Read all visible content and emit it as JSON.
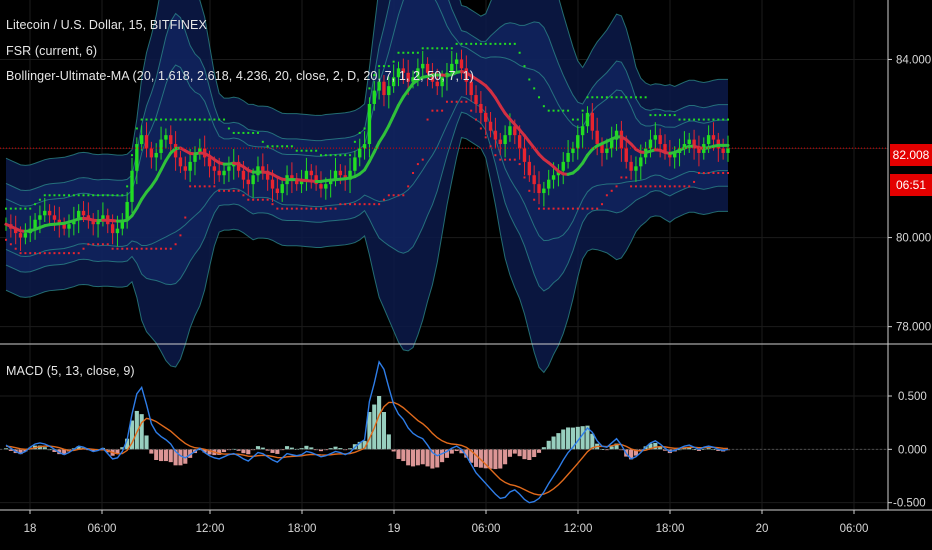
{
  "chart_title": "Litecoin / U.S. Dollar, 15, BITFINEX",
  "indicators": {
    "fsr": "FSR (current, 6)",
    "bollinger": "Bollinger-Ultimate-MA (20, 1.618, 2.618, 4.236, 20, close, 2, D, 20, 7, 1, 2, 50, 7, 1)",
    "macd": "MACD (5, 13, close, 9)"
  },
  "price_tags": {
    "price": "82.008",
    "countdown": "06:51"
  },
  "colors": {
    "up": "#22dd22",
    "down": "#e8242f",
    "ma_up": "#2fc23a",
    "ma_down": "#d22f43",
    "macd_line": "#2e7de8",
    "signal_line": "#e06a1c",
    "hist_up": "#a8e6d4",
    "hist_down": "#f4a6a6",
    "band_fill": "#0c1a4a",
    "band_line": "#2e8c8c",
    "price_line": "#e30000",
    "fsr_up": "#22dd22",
    "fsr_down": "#e8242f"
  },
  "chart_data": [
    {
      "type": "candlestick",
      "title": "Litecoin / U.S. Dollar, 15, BITFINEX",
      "ylim": [
        77.7,
        85.2
      ],
      "y_ticks": [
        "84.000",
        "80.000",
        "78.000"
      ],
      "current_price": 82.008,
      "series": [
        {
          "name": "price",
          "values": [
            80.3,
            80.2,
            80.1,
            80.0,
            80.1,
            80.2,
            80.4,
            80.5,
            80.6,
            80.5,
            80.4,
            80.3,
            80.2,
            80.3,
            80.4,
            80.6,
            80.5,
            80.4,
            80.3,
            80.4,
            80.5,
            80.3,
            80.1,
            80.2,
            80.4,
            80.8,
            81.5,
            82.1,
            82.3,
            82.0,
            81.8,
            81.9,
            82.2,
            82.3,
            82.1,
            81.8,
            81.6,
            81.5,
            81.7,
            81.9,
            82.0,
            81.8,
            81.6,
            81.5,
            81.4,
            81.5,
            81.6,
            81.7,
            81.5,
            81.3,
            81.2,
            81.4,
            81.6,
            81.5,
            81.3,
            81.1,
            81.0,
            81.2,
            81.4,
            81.3,
            81.2,
            81.3,
            81.5,
            81.4,
            81.2,
            81.1,
            81.2,
            81.3,
            81.5,
            81.4,
            81.3,
            81.5,
            81.8,
            82.0,
            82.1,
            83.0,
            83.3,
            83.5,
            83.2,
            83.4,
            83.6,
            83.8,
            83.7,
            83.5,
            83.6,
            83.8,
            83.9,
            83.7,
            83.5,
            83.4,
            83.6,
            83.7,
            83.9,
            84.0,
            83.8,
            83.5,
            83.2,
            83.0,
            82.8,
            82.6,
            82.4,
            82.2,
            82.1,
            82.3,
            82.5,
            82.3,
            82.0,
            81.7,
            81.4,
            81.2,
            81.0,
            81.1,
            81.3,
            81.4,
            81.5,
            81.7,
            81.9,
            82.0,
            82.3,
            82.5,
            82.8,
            82.4,
            82.1,
            81.9,
            82.0,
            82.2,
            82.4,
            82.0,
            81.7,
            81.5,
            81.6,
            81.8,
            82.0,
            82.2,
            82.3,
            82.1,
            81.9,
            81.8,
            81.9,
            82.0,
            82.1,
            82.2,
            82.0,
            81.9,
            82.1,
            82.3,
            82.2,
            82.0,
            81.9,
            82.0
          ]
        }
      ]
    },
    {
      "type": "line",
      "title": "MACD (5, 13, close, 9)",
      "ylim": [
        -0.55,
        0.95
      ],
      "y_ticks": [
        "0.500",
        "0.000",
        "-0.500"
      ],
      "x_tick_labels": [
        "18",
        "06:00",
        "12:00",
        "18:00",
        "19",
        "06:00",
        "12:00",
        "18:00",
        "20",
        "06:00"
      ],
      "series": [
        {
          "name": "MACD",
          "values": [
            0.04,
            0.01,
            -0.02,
            -0.04,
            -0.02,
            0.02,
            0.05,
            0.06,
            0.05,
            0.03,
            0.0,
            -0.03,
            -0.05,
            -0.03,
            0.0,
            0.03,
            0.02,
            0.0,
            -0.02,
            -0.01,
            0.01,
            -0.04,
            -0.09,
            -0.08,
            -0.02,
            0.09,
            0.33,
            0.52,
            0.58,
            0.42,
            0.24,
            0.16,
            0.12,
            0.09,
            0.05,
            -0.02,
            -0.06,
            -0.08,
            -0.05,
            -0.02,
            0.01,
            -0.03,
            -0.06,
            -0.08,
            -0.09,
            -0.07,
            -0.05,
            -0.04,
            -0.06,
            -0.09,
            -0.11,
            -0.07,
            -0.03,
            -0.04,
            -0.07,
            -0.1,
            -0.12,
            -0.08,
            -0.04,
            -0.05,
            -0.06,
            -0.05,
            -0.02,
            -0.03,
            -0.05,
            -0.07,
            -0.06,
            -0.04,
            -0.02,
            -0.03,
            -0.05,
            -0.03,
            0.02,
            0.06,
            0.09,
            0.45,
            0.62,
            0.82,
            0.75,
            0.58,
            0.42,
            0.33,
            0.28,
            0.2,
            0.15,
            0.12,
            0.1,
            0.04,
            -0.03,
            -0.06,
            -0.04,
            -0.02,
            0.01,
            0.03,
            0.0,
            -0.06,
            -0.14,
            -0.22,
            -0.27,
            -0.32,
            -0.37,
            -0.42,
            -0.46,
            -0.45,
            -0.4,
            -0.38,
            -0.42,
            -0.47,
            -0.5,
            -0.49,
            -0.46,
            -0.4,
            -0.32,
            -0.25,
            -0.18,
            -0.1,
            -0.03,
            0.02,
            0.08,
            0.14,
            0.2,
            0.16,
            0.08,
            0.03,
            0.02,
            0.06,
            0.1,
            0.04,
            -0.04,
            -0.09,
            -0.07,
            -0.03,
            0.02,
            0.06,
            0.08,
            0.05,
            0.01,
            -0.02,
            -0.01,
            0.01,
            0.03,
            0.04,
            0.02,
            0.0,
            0.02,
            0.03,
            0.02,
            0.0,
            -0.01,
            0.0
          ]
        },
        {
          "name": "Signal",
          "values": [
            0.03,
            0.025,
            0.015,
            0.005,
            0.0,
            0.005,
            0.015,
            0.025,
            0.03,
            0.03,
            0.025,
            0.015,
            0.0,
            -0.01,
            -0.01,
            0.0,
            0.005,
            0.005,
            0.0,
            -0.005,
            -0.003,
            -0.012,
            -0.03,
            -0.042,
            -0.04,
            -0.01,
            0.06,
            0.16,
            0.25,
            0.29,
            0.28,
            0.26,
            0.23,
            0.2,
            0.17,
            0.13,
            0.09,
            0.055,
            0.03,
            0.015,
            0.01,
            0.0,
            -0.012,
            -0.026,
            -0.038,
            -0.044,
            -0.045,
            -0.044,
            -0.046,
            -0.054,
            -0.064,
            -0.066,
            -0.06,
            -0.056,
            -0.058,
            -0.066,
            -0.077,
            -0.078,
            -0.07,
            -0.066,
            -0.064,
            -0.061,
            -0.053,
            -0.048,
            -0.049,
            -0.053,
            -0.054,
            -0.051,
            -0.045,
            -0.042,
            -0.043,
            -0.04,
            -0.028,
            -0.01,
            0.01,
            0.1,
            0.2,
            0.32,
            0.4,
            0.44,
            0.44,
            0.42,
            0.39,
            0.35,
            0.31,
            0.27,
            0.24,
            0.2,
            0.15,
            0.11,
            0.08,
            0.06,
            0.05,
            0.046,
            0.037,
            0.018,
            -0.014,
            -0.055,
            -0.098,
            -0.142,
            -0.188,
            -0.235,
            -0.28,
            -0.31,
            -0.33,
            -0.34,
            -0.356,
            -0.378,
            -0.4,
            -0.418,
            -0.427,
            -0.42,
            -0.4,
            -0.37,
            -0.332,
            -0.286,
            -0.235,
            -0.184,
            -0.131,
            -0.077,
            -0.022,
            0.014,
            0.027,
            0.028,
            0.026,
            0.033,
            0.046,
            0.045,
            0.028,
            0.004,
            -0.011,
            -0.015,
            -0.008,
            0.006,
            0.02,
            0.026,
            0.023,
            0.015,
            0.01,
            0.01,
            0.014,
            0.019,
            0.019,
            0.015,
            0.016,
            0.019,
            0.019,
            0.015,
            0.01,
            0.008
          ]
        }
      ]
    }
  ]
}
